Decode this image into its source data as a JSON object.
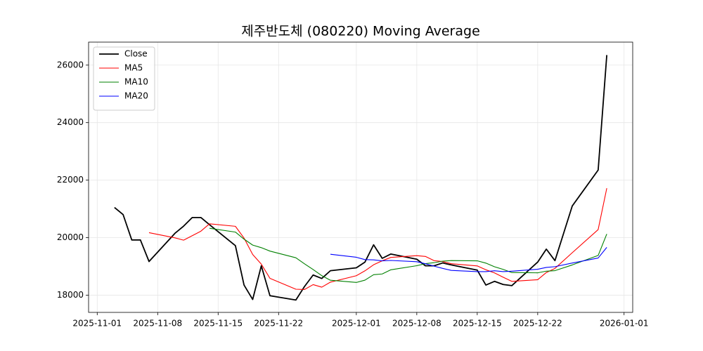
{
  "chart_data": {
    "type": "line",
    "title": "제주반도체 (080220) Moving Average",
    "x": [
      "2025-11-03",
      "2025-11-04",
      "2025-11-05",
      "2025-11-06",
      "2025-11-07",
      "2025-11-10",
      "2025-11-11",
      "2025-11-12",
      "2025-11-13",
      "2025-11-14",
      "2025-11-17",
      "2025-11-18",
      "2025-11-19",
      "2025-11-20",
      "2025-11-21",
      "2025-11-24",
      "2025-11-25",
      "2025-11-26",
      "2025-11-27",
      "2025-11-28",
      "2025-12-01",
      "2025-12-02",
      "2025-12-03",
      "2025-12-04",
      "2025-12-05",
      "2025-12-08",
      "2025-12-09",
      "2025-12-10",
      "2025-12-11",
      "2025-12-12",
      "2025-12-15",
      "2025-12-16",
      "2025-12-17",
      "2025-12-18",
      "2025-12-19",
      "2025-12-22",
      "2025-12-23",
      "2025-12-24",
      "2025-12-26",
      "2025-12-29",
      "2025-12-30"
    ],
    "series": [
      {
        "name": "Close",
        "color": "#000000",
        "values": [
          21050,
          20800,
          19920,
          19920,
          19170,
          20150,
          20400,
          20700,
          20700,
          20450,
          19720,
          18350,
          17850,
          19020,
          17980,
          17830,
          18300,
          18700,
          18580,
          18850,
          18950,
          19150,
          19750,
          19280,
          19430,
          19250,
          19020,
          19020,
          19120,
          19050,
          18870,
          18350,
          18480,
          18370,
          18330,
          19150,
          19600,
          19200,
          21100,
          22350,
          26350
        ]
      },
      {
        "name": "MA5",
        "color": "#ff0000",
        "values": [
          null,
          null,
          null,
          null,
          20172,
          19992,
          19912,
          20068,
          20224,
          20480,
          20394,
          19984,
          19414,
          19078,
          18584,
          18206,
          18196,
          18366,
          18278,
          18452,
          18676,
          18846,
          19056,
          19196,
          19312,
          19372,
          19346,
          19200,
          19168,
          19092,
          19016,
          18882,
          18774,
          18624,
          18480,
          18536,
          18786,
          18930,
          19476,
          20280,
          21720
        ]
      },
      {
        "name": "MA10",
        "color": "#008000",
        "values": [
          null,
          null,
          null,
          null,
          null,
          null,
          null,
          null,
          null,
          20326,
          20193,
          19948,
          19741,
          19651,
          19532,
          19300,
          19090,
          18890,
          18678,
          18518,
          18441,
          18521,
          18711,
          18737,
          18882,
          19024,
          19096,
          19128,
          19182,
          19202,
          19194,
          19114,
          18987,
          18896,
          18786,
          18776,
          18834,
          18852,
          19050,
          19380,
          20128
        ]
      },
      {
        "name": "MA20",
        "color": "#0000ff",
        "values": [
          null,
          null,
          null,
          null,
          null,
          null,
          null,
          null,
          null,
          null,
          null,
          null,
          null,
          null,
          null,
          null,
          null,
          null,
          null,
          19422,
          19317,
          19235,
          19226,
          19194,
          19207,
          19162,
          19093,
          19009,
          18930,
          18860,
          18818,
          18818,
          18849,
          18817,
          18834,
          18900,
          18965,
          18990,
          19116,
          19291,
          19661
        ]
      }
    ],
    "xlim": [
      "2025-10-31",
      "2026-01-02"
    ],
    "xticks": [
      "2025-11-01",
      "2025-11-08",
      "2025-11-15",
      "2025-11-22",
      "2025-12-01",
      "2025-12-08",
      "2025-12-15",
      "2025-12-22",
      "2026-01-01"
    ],
    "ylim": [
      17400,
      26800
    ],
    "yticks": [
      18000,
      20000,
      22000,
      24000,
      26000
    ],
    "grid": true,
    "legend": "upper left"
  }
}
